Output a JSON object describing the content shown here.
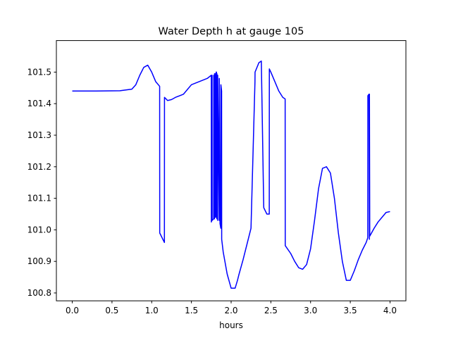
{
  "chart_data": {
    "type": "line",
    "title": "Water Depth h at gauge 105",
    "xlabel": "hours",
    "ylabel": "",
    "xlim": [
      -0.2,
      4.2
    ],
    "ylim": [
      100.775,
      101.6
    ],
    "grid": false,
    "x_ticks": [
      0.0,
      0.5,
      1.0,
      1.5,
      2.0,
      2.5,
      3.0,
      3.5,
      4.0
    ],
    "x_tick_labels": [
      "0.0",
      "0.5",
      "1.0",
      "1.5",
      "2.0",
      "2.5",
      "3.0",
      "3.5",
      "4.0"
    ],
    "y_ticks": [
      100.8,
      100.9,
      101.0,
      101.1,
      101.2,
      101.3,
      101.4,
      101.5
    ],
    "y_tick_labels": [
      "100.8",
      "100.9",
      "101.0",
      "101.1",
      "101.2",
      "101.3",
      "101.4",
      "101.5"
    ],
    "series": [
      {
        "color": "#0000ff",
        "x": [
          0.0,
          0.3,
          0.6,
          0.75,
          0.8,
          0.85,
          0.9,
          0.95,
          1.0,
          1.05,
          1.1,
          1.101,
          1.16,
          1.161,
          1.2,
          1.25,
          1.3,
          1.4,
          1.45,
          1.5,
          1.6,
          1.7,
          1.75,
          1.751,
          1.755,
          1.76,
          1.761,
          1.78,
          1.781,
          1.785,
          1.79,
          1.791,
          1.8,
          1.801,
          1.81,
          1.811,
          1.815,
          1.82,
          1.821,
          1.83,
          1.831,
          1.85,
          1.851,
          1.86,
          1.87,
          1.871,
          1.88,
          1.881,
          1.9,
          1.95,
          2.0,
          2.05,
          2.08,
          2.1,
          2.15,
          2.2,
          2.25,
          2.3,
          2.301,
          2.35,
          2.38,
          2.41,
          2.411,
          2.45,
          2.48,
          2.481,
          2.5,
          2.55,
          2.6,
          2.65,
          2.68,
          2.681,
          2.75,
          2.8,
          2.85,
          2.9,
          2.95,
          3.0,
          3.05,
          3.1,
          3.15,
          3.2,
          3.25,
          3.3,
          3.35,
          3.4,
          3.45,
          3.5,
          3.55,
          3.6,
          3.65,
          3.7,
          3.72,
          3.721,
          3.735,
          3.74,
          3.741,
          3.745,
          3.8,
          3.85,
          3.9,
          3.95,
          4.0
        ],
        "y": [
          101.44,
          101.44,
          101.441,
          101.446,
          101.46,
          101.49,
          101.515,
          101.522,
          101.5,
          101.47,
          101.455,
          100.99,
          100.96,
          101.42,
          101.41,
          101.413,
          101.42,
          101.43,
          101.445,
          101.46,
          101.47,
          101.48,
          101.49,
          101.025,
          101.03,
          101.49,
          101.03,
          101.035,
          101.49,
          101.035,
          101.035,
          101.495,
          101.04,
          101.495,
          101.04,
          101.5,
          101.5,
          101.035,
          101.495,
          101.03,
          101.49,
          101.03,
          101.48,
          101.02,
          101.005,
          101.46,
          101.44,
          100.97,
          100.93,
          100.86,
          100.815,
          100.815,
          100.84,
          100.86,
          100.905,
          100.955,
          101.005,
          101.47,
          101.5,
          101.53,
          101.535,
          101.075,
          101.07,
          101.05,
          101.05,
          101.51,
          101.5,
          101.47,
          101.44,
          101.42,
          101.415,
          100.95,
          100.925,
          100.9,
          100.88,
          100.875,
          100.89,
          100.94,
          101.03,
          101.13,
          101.195,
          101.2,
          101.18,
          101.1,
          100.99,
          100.9,
          100.84,
          100.84,
          100.87,
          100.905,
          100.935,
          100.96,
          100.975,
          101.425,
          101.43,
          100.97,
          101.43,
          100.98,
          101.005,
          101.025,
          101.04,
          101.055,
          101.058
        ]
      }
    ]
  }
}
